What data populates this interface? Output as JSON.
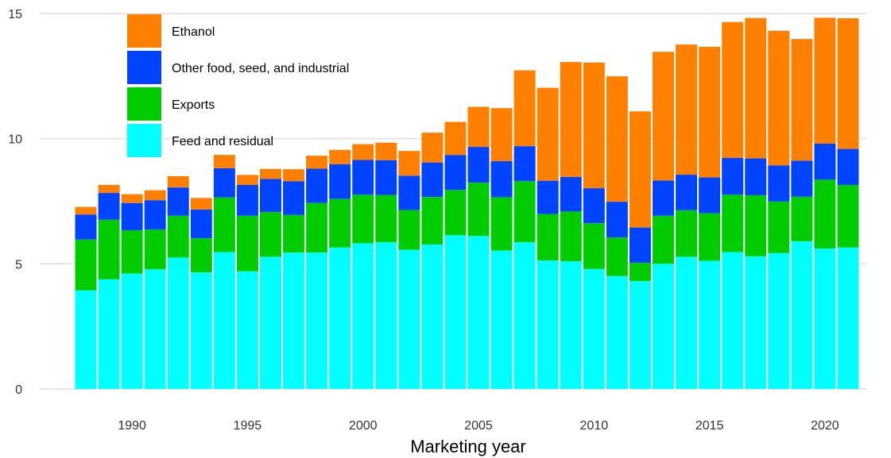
{
  "chart_data": {
    "type": "bar",
    "stacked": true,
    "title": "",
    "xlabel": "Marketing year",
    "ylabel": "",
    "ylim": [
      0,
      15
    ],
    "yticks": [
      0,
      5,
      10,
      15
    ],
    "xticks": [
      1990,
      1995,
      2000,
      2005,
      2010,
      2015,
      2020
    ],
    "grid": true,
    "legend_position": "top-left",
    "categories": [
      1988,
      1989,
      1990,
      1991,
      1992,
      1993,
      1994,
      1995,
      1996,
      1997,
      1998,
      1999,
      2000,
      2001,
      2002,
      2003,
      2004,
      2005,
      2006,
      2007,
      2008,
      2009,
      2010,
      2011,
      2012,
      2013,
      2014,
      2015,
      2016,
      2017,
      2018,
      2019,
      2020,
      2021
    ],
    "series": [
      {
        "name": "Feed and residual",
        "color": "#00FFFF",
        "values": [
          3.94,
          4.38,
          4.61,
          4.78,
          5.25,
          4.66,
          5.47,
          4.7,
          5.28,
          5.45,
          5.45,
          5.65,
          5.82,
          5.86,
          5.56,
          5.77,
          6.14,
          6.11,
          5.53,
          5.86,
          5.13,
          5.1,
          4.79,
          4.51,
          4.31,
          5.0,
          5.28,
          5.12,
          5.47,
          5.3,
          5.43,
          5.9,
          5.61,
          5.65
        ]
      },
      {
        "name": "Exports",
        "color": "#00CC00",
        "values": [
          2.03,
          2.38,
          1.73,
          1.59,
          1.67,
          1.36,
          2.18,
          2.22,
          1.79,
          1.5,
          1.98,
          1.94,
          1.94,
          1.89,
          1.59,
          1.9,
          1.81,
          2.13,
          2.13,
          2.44,
          1.86,
          1.99,
          1.83,
          1.54,
          0.73,
          1.92,
          1.86,
          1.9,
          2.29,
          2.44,
          2.06,
          1.78,
          2.75,
          2.5
        ]
      },
      {
        "name": "Other food, seed, and industrial",
        "color": "#0044FF",
        "values": [
          1.0,
          1.07,
          1.09,
          1.17,
          1.13,
          1.15,
          1.17,
          1.23,
          1.32,
          1.35,
          1.37,
          1.39,
          1.39,
          1.39,
          1.37,
          1.38,
          1.4,
          1.43,
          1.44,
          1.4,
          1.33,
          1.38,
          1.4,
          1.43,
          1.41,
          1.41,
          1.42,
          1.43,
          1.47,
          1.47,
          1.44,
          1.44,
          1.44,
          1.44
        ]
      },
      {
        "name": "Ethanol",
        "color": "#FF8000",
        "values": [
          0.3,
          0.32,
          0.35,
          0.4,
          0.45,
          0.46,
          0.53,
          0.4,
          0.4,
          0.48,
          0.52,
          0.57,
          0.63,
          0.7,
          0.99,
          1.19,
          1.32,
          1.6,
          2.12,
          3.03,
          3.71,
          4.59,
          5.02,
          5.01,
          4.64,
          5.14,
          5.2,
          5.22,
          5.43,
          5.61,
          5.38,
          4.86,
          5.03,
          5.22
        ]
      }
    ]
  }
}
